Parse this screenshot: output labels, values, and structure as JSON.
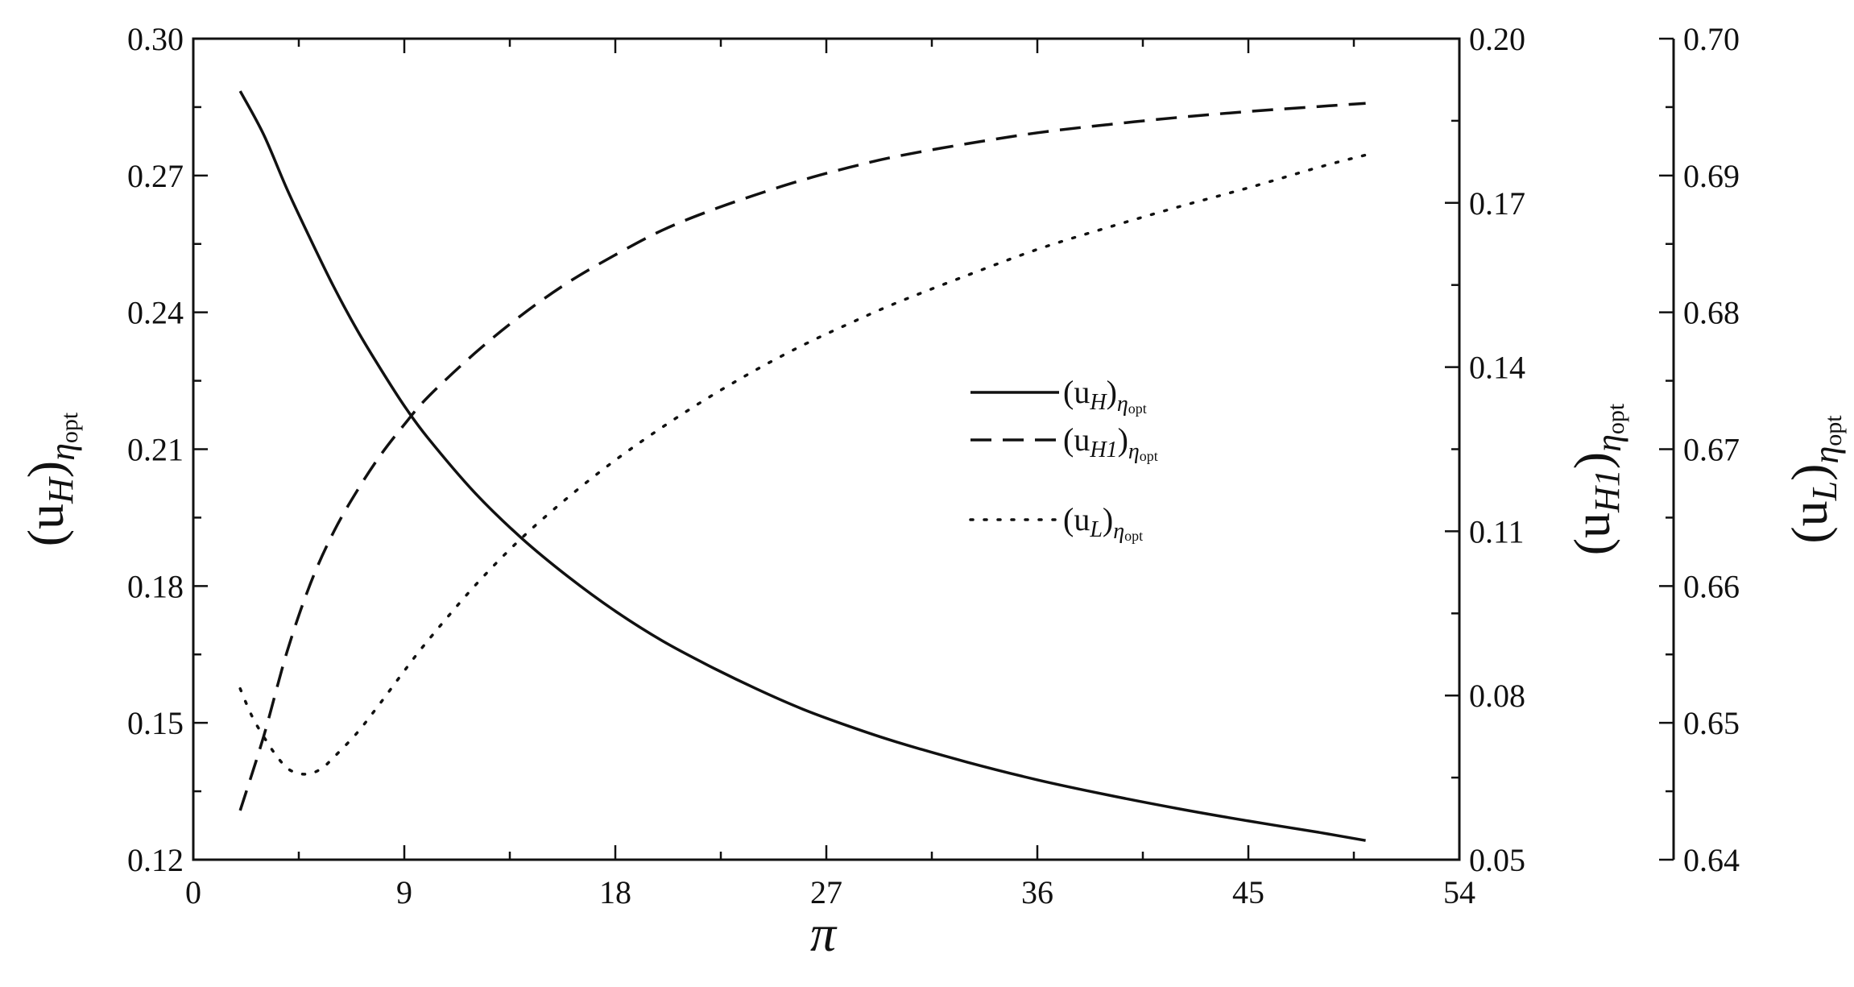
{
  "chart_data": {
    "type": "line",
    "x_axis": {
      "label": "π",
      "range": [
        0,
        54
      ],
      "ticks": [
        0,
        9,
        18,
        27,
        36,
        45,
        54
      ],
      "tick_labels": [
        "0",
        "9",
        "18",
        "27",
        "36",
        "45",
        "54"
      ]
    },
    "y_axes": [
      {
        "id": "uH",
        "label": "(u_H)_ηopt",
        "label_main": "(u",
        "label_sub": "H",
        "label_close": ")",
        "label_subsub": "η",
        "label_opt": "opt",
        "range": [
          0.12,
          0.3
        ],
        "ticks": [
          0.12,
          0.15,
          0.18,
          0.21,
          0.24,
          0.27,
          0.3
        ],
        "tick_labels": [
          "0.12",
          "0.15",
          "0.18",
          "0.21",
          "0.24",
          "0.27",
          "0.30"
        ],
        "position": "left"
      },
      {
        "id": "uH1",
        "label": "(u_H1)_ηopt",
        "label_main": "(u",
        "label_sub": "H1",
        "label_close": ")",
        "label_subsub": "η",
        "label_opt": "opt",
        "range": [
          0.05,
          0.2
        ],
        "ticks": [
          0.05,
          0.08,
          0.11,
          0.14,
          0.17,
          0.2
        ],
        "tick_labels": [
          "0.05",
          "0.08",
          "0.11",
          "0.14",
          "0.17",
          "0.20"
        ],
        "position": "right"
      },
      {
        "id": "uL",
        "label": "(u_L)_ηopt",
        "label_main": "(u",
        "label_sub": "L",
        "label_close": ")",
        "label_subsub": "η",
        "label_opt": "opt",
        "range": [
          0.64,
          0.7
        ],
        "ticks": [
          0.64,
          0.65,
          0.66,
          0.67,
          0.68,
          0.69,
          0.7
        ],
        "tick_labels": [
          "0.64",
          "0.65",
          "0.66",
          "0.67",
          "0.68",
          "0.69",
          "0.70"
        ],
        "position": "far-right"
      }
    ],
    "legend": {
      "placement": "center-right",
      "entries": [
        {
          "series": "uH",
          "main": "(u",
          "sub": "H",
          "close": ")",
          "subsub": "η",
          "opt": "opt",
          "style": "solid"
        },
        {
          "series": "uH1",
          "main": "(u",
          "sub": "H1",
          "close": ")",
          "subsub": "η",
          "opt": "opt",
          "style": "dashed"
        },
        {
          "series": "uL",
          "main": "(u",
          "sub": "L",
          "close": ")",
          "subsub": "η",
          "opt": "opt",
          "style": "dotted"
        }
      ]
    },
    "grid": false,
    "series": [
      {
        "id": "uH",
        "axis": "uH",
        "style": "solid",
        "x": [
          2,
          3,
          4,
          5,
          6,
          7,
          8,
          9,
          10,
          12,
          14,
          16,
          18,
          20,
          22,
          24,
          26,
          28,
          30,
          33,
          36,
          39,
          42,
          45,
          48,
          50
        ],
        "y": [
          0.2885,
          0.279,
          0.267,
          0.256,
          0.2455,
          0.236,
          0.2275,
          0.2195,
          0.2125,
          0.2005,
          0.1905,
          0.182,
          0.1745,
          0.168,
          0.1625,
          0.1575,
          0.153,
          0.1492,
          0.1458,
          0.1414,
          0.1375,
          0.1342,
          0.1312,
          0.1285,
          0.126,
          0.1242
        ]
      },
      {
        "id": "uH1",
        "axis": "uH1",
        "style": "dashed",
        "x": [
          2,
          3,
          4,
          5,
          6,
          7,
          8,
          9,
          10,
          12,
          14,
          16,
          18,
          20,
          22,
          24,
          26,
          28,
          30,
          33,
          36,
          39,
          42,
          45,
          48,
          50
        ],
        "y": [
          0.059,
          0.0725,
          0.088,
          0.1005,
          0.11,
          0.1175,
          0.124,
          0.1295,
          0.1345,
          0.1425,
          0.1495,
          0.1555,
          0.1605,
          0.165,
          0.1685,
          0.1715,
          0.1742,
          0.1765,
          0.1785,
          0.1808,
          0.1828,
          0.1843,
          0.1856,
          0.1867,
          0.1876,
          0.1882
        ]
      },
      {
        "id": "uL",
        "axis": "uL",
        "style": "dotted",
        "x": [
          2,
          2.5,
          3,
          3.5,
          4,
          4.5,
          5,
          5.5,
          6,
          7,
          8,
          9,
          10,
          12,
          14,
          16,
          18,
          20,
          22,
          24,
          26,
          28,
          30,
          33,
          36,
          39,
          42,
          45,
          48,
          50
        ],
        "y": [
          0.6525,
          0.6505,
          0.649,
          0.6477,
          0.6467,
          0.6463,
          0.6463,
          0.6467,
          0.6475,
          0.6493,
          0.6515,
          0.6538,
          0.656,
          0.66,
          0.6635,
          0.6665,
          0.6692,
          0.6716,
          0.6738,
          0.6758,
          0.6776,
          0.6792,
          0.6807,
          0.6827,
          0.6846,
          0.6862,
          0.6877,
          0.6891,
          0.6906,
          0.6915
        ]
      }
    ]
  }
}
